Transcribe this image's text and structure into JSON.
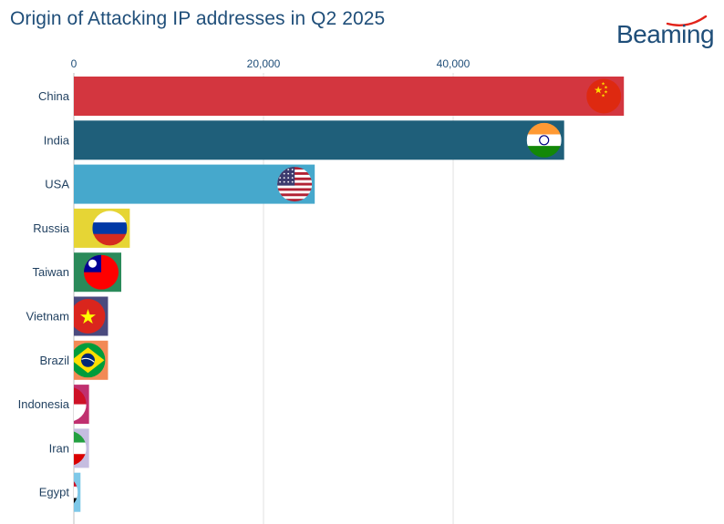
{
  "chart_data": {
    "type": "bar",
    "orientation": "horizontal",
    "title": "Origin of Attacking IP addresses in Q2 2025",
    "xlabel": "",
    "ylabel": "",
    "xlim": [
      0,
      70000
    ],
    "x_ticks": [
      0,
      20000,
      40000
    ],
    "x_tick_labels": [
      "0",
      "20,000",
      "40,000"
    ],
    "grid": true,
    "categories": [
      "China",
      "India",
      "USA",
      "Russia",
      "Taiwan",
      "Vietnam",
      "Brazil",
      "Indonesia",
      "Iran",
      "Egypt"
    ],
    "values": [
      58000,
      51700,
      25400,
      5900,
      5000,
      3600,
      3600,
      1600,
      1600,
      700
    ],
    "colors": [
      "#d3363f",
      "#1f5f7a",
      "#46a8cc",
      "#e6d535",
      "#2a8a5a",
      "#4a4a7e",
      "#f28a55",
      "#c0306f",
      "#c5bde0",
      "#7ec8e8"
    ],
    "flag_icons": [
      "china-flag-icon",
      "india-flag-icon",
      "usa-flag-icon",
      "russia-flag-icon",
      "taiwan-flag-icon",
      "vietnam-flag-icon",
      "brazil-flag-icon",
      "indonesia-flag-icon",
      "iran-flag-icon",
      "egypt-flag-icon"
    ]
  },
  "brand": {
    "name": "Beaming",
    "color": "#1f4e79",
    "accent": "#e2231a"
  }
}
